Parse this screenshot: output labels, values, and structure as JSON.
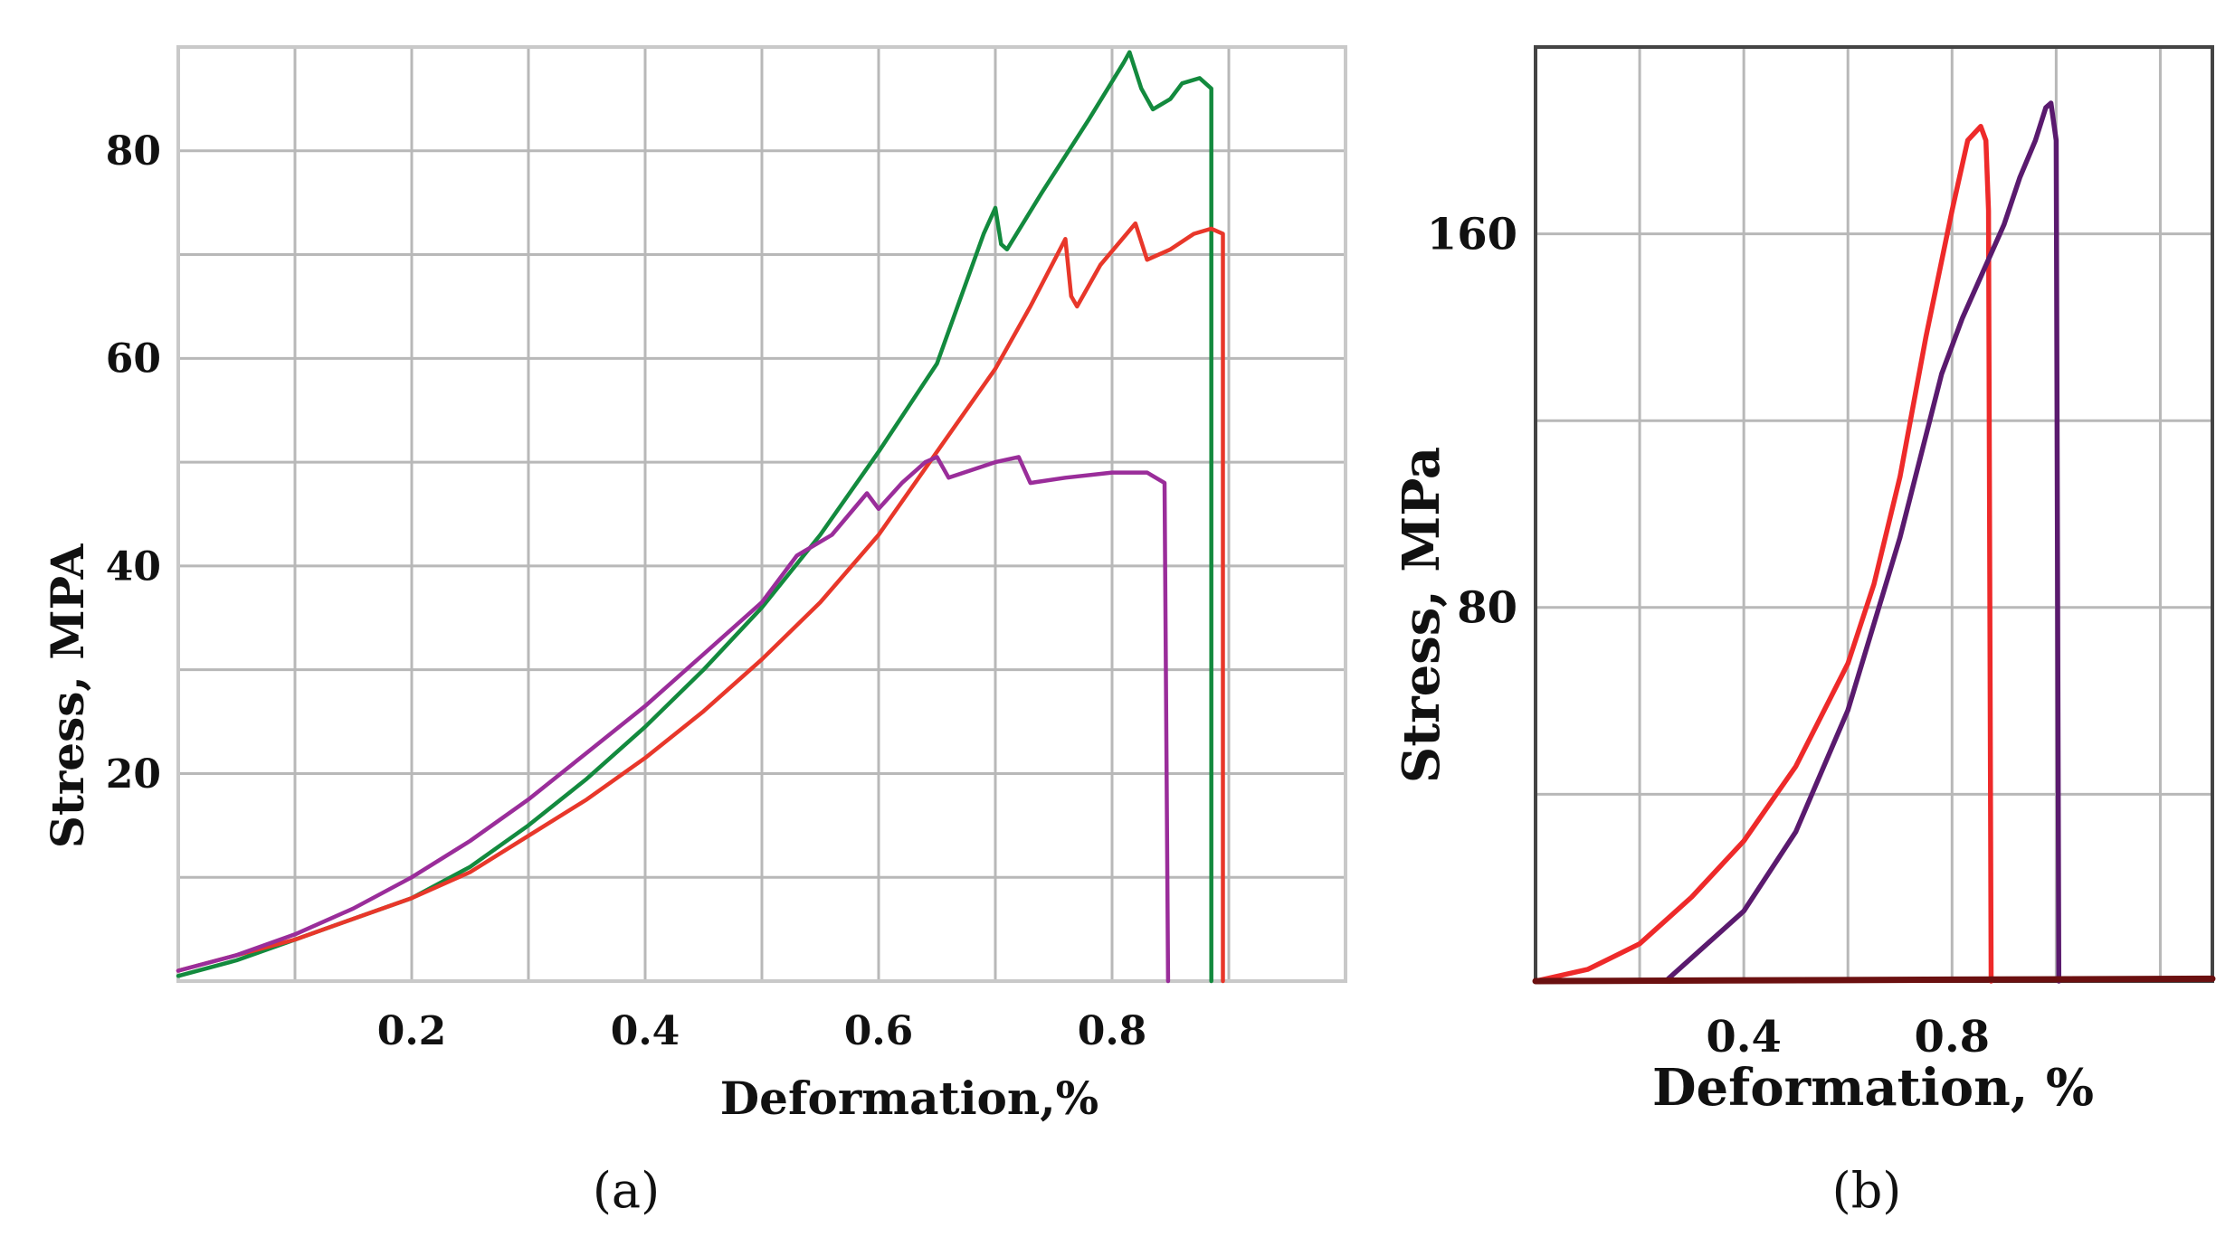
{
  "chart_data": [
    {
      "type": "line",
      "panel_label": "(a)",
      "xlabel": "Deformation,%",
      "ylabel": "Stress, MPA",
      "xlim": [
        0,
        1.0
      ],
      "ylim": [
        0,
        90
      ],
      "x_ticks": [
        0.2,
        0.4,
        0.6,
        0.8
      ],
      "x_tick_labels": [
        "0.2",
        "0.4",
        "0.6",
        "0.8"
      ],
      "y_ticks": [
        20,
        40,
        60,
        80
      ],
      "y_tick_labels": [
        "20",
        "40",
        "60",
        "80"
      ],
      "x_grid": [
        0.1,
        0.2,
        0.3,
        0.4,
        0.5,
        0.6,
        0.7,
        0.8,
        0.9
      ],
      "y_grid": [
        10,
        20,
        30,
        40,
        50,
        60,
        70,
        80
      ],
      "grid": true,
      "series": [
        {
          "name": "green",
          "color": "#138a3e",
          "points": [
            [
              0,
              0.5
            ],
            [
              0.05,
              2
            ],
            [
              0.1,
              4
            ],
            [
              0.15,
              6
            ],
            [
              0.2,
              8
            ],
            [
              0.25,
              11
            ],
            [
              0.3,
              15
            ],
            [
              0.35,
              19.5
            ],
            [
              0.4,
              24.5
            ],
            [
              0.45,
              30
            ],
            [
              0.5,
              36
            ],
            [
              0.55,
              43
            ],
            [
              0.6,
              51
            ],
            [
              0.65,
              59.5
            ],
            [
              0.69,
              72
            ],
            [
              0.7,
              74.5
            ],
            [
              0.705,
              71
            ],
            [
              0.71,
              70.5
            ],
            [
              0.74,
              76
            ],
            [
              0.78,
              83
            ],
            [
              0.81,
              88.5
            ],
            [
              0.815,
              89.5
            ],
            [
              0.825,
              86
            ],
            [
              0.835,
              84
            ],
            [
              0.85,
              85
            ],
            [
              0.86,
              86.5
            ],
            [
              0.875,
              87
            ],
            [
              0.885,
              86
            ],
            [
              0.885,
              0
            ]
          ]
        },
        {
          "name": "red",
          "color": "#e8372a",
          "points": [
            [
              0,
              1
            ],
            [
              0.05,
              2.5
            ],
            [
              0.1,
              4
            ],
            [
              0.15,
              6
            ],
            [
              0.2,
              8
            ],
            [
              0.25,
              10.5
            ],
            [
              0.3,
              14
            ],
            [
              0.35,
              17.5
            ],
            [
              0.4,
              21.5
            ],
            [
              0.45,
              26
            ],
            [
              0.5,
              31
            ],
            [
              0.55,
              36.5
            ],
            [
              0.6,
              43
            ],
            [
              0.65,
              51
            ],
            [
              0.7,
              59
            ],
            [
              0.73,
              65
            ],
            [
              0.76,
              71.5
            ],
            [
              0.765,
              66
            ],
            [
              0.77,
              65
            ],
            [
              0.79,
              69
            ],
            [
              0.82,
              73
            ],
            [
              0.83,
              69.5
            ],
            [
              0.85,
              70.5
            ],
            [
              0.87,
              72
            ],
            [
              0.885,
              72.5
            ],
            [
              0.895,
              72
            ],
            [
              0.895,
              0
            ]
          ]
        },
        {
          "name": "purple",
          "color": "#9a2d9a",
          "points": [
            [
              0,
              1
            ],
            [
              0.05,
              2.5
            ],
            [
              0.1,
              4.5
            ],
            [
              0.15,
              7
            ],
            [
              0.2,
              10
            ],
            [
              0.25,
              13.5
            ],
            [
              0.3,
              17.5
            ],
            [
              0.35,
              22
            ],
            [
              0.4,
              26.5
            ],
            [
              0.45,
              31.5
            ],
            [
              0.5,
              36.5
            ],
            [
              0.53,
              41
            ],
            [
              0.56,
              43
            ],
            [
              0.59,
              47
            ],
            [
              0.6,
              45.5
            ],
            [
              0.62,
              48
            ],
            [
              0.64,
              50
            ],
            [
              0.65,
              50.5
            ],
            [
              0.66,
              48.5
            ],
            [
              0.7,
              50
            ],
            [
              0.72,
              50.5
            ],
            [
              0.73,
              48
            ],
            [
              0.76,
              48.5
            ],
            [
              0.8,
              49
            ],
            [
              0.83,
              49
            ],
            [
              0.845,
              48
            ],
            [
              0.848,
              0
            ]
          ]
        }
      ]
    },
    {
      "type": "line",
      "panel_label": "(b)",
      "xlabel": "Deformation, %",
      "ylabel": "Stress, MPa",
      "xlim": [
        0,
        1.3
      ],
      "ylim": [
        0,
        200
      ],
      "x_ticks": [
        0.4,
        0.8
      ],
      "x_tick_labels": [
        "0.4",
        "0.8"
      ],
      "y_ticks": [
        80,
        160
      ],
      "y_tick_labels": [
        "80",
        "160"
      ],
      "x_grid": [
        0.2,
        0.4,
        0.6,
        0.8,
        1.0,
        1.2
      ],
      "y_grid": [
        40,
        80,
        120,
        160
      ],
      "grid": true,
      "series": [
        {
          "name": "red",
          "color": "#ee2a2a",
          "points": [
            [
              0,
              0
            ],
            [
              0.1,
              2.5
            ],
            [
              0.2,
              8
            ],
            [
              0.3,
              18
            ],
            [
              0.4,
              30
            ],
            [
              0.5,
              46
            ],
            [
              0.6,
              68
            ],
            [
              0.65,
              85
            ],
            [
              0.7,
              108
            ],
            [
              0.75,
              138
            ],
            [
              0.8,
              165
            ],
            [
              0.83,
              180
            ],
            [
              0.855,
              183
            ],
            [
              0.865,
              180
            ],
            [
              0.87,
              165
            ],
            [
              0.875,
              0
            ]
          ]
        },
        {
          "name": "dark purple",
          "color": "#5a1a6e",
          "points": [
            [
              0.25,
              0
            ],
            [
              0.3,
              5
            ],
            [
              0.4,
              15
            ],
            [
              0.5,
              32
            ],
            [
              0.6,
              58
            ],
            [
              0.7,
              95
            ],
            [
              0.78,
              130
            ],
            [
              0.82,
              142
            ],
            [
              0.86,
              152
            ],
            [
              0.9,
              162
            ],
            [
              0.93,
              172
            ],
            [
              0.96,
              180
            ],
            [
              0.98,
              187
            ],
            [
              0.99,
              188
            ],
            [
              1.0,
              180
            ],
            [
              1.005,
              0
            ]
          ]
        },
        {
          "name": "baseline",
          "color": "#6b1010",
          "points": [
            [
              0,
              0
            ],
            [
              1.3,
              0.5
            ]
          ]
        }
      ]
    }
  ]
}
